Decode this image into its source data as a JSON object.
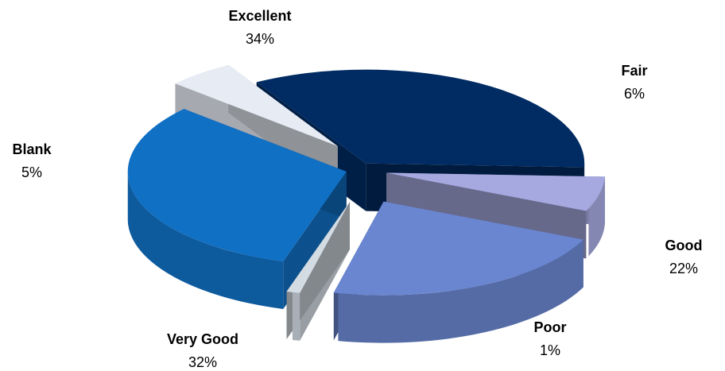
{
  "chart_data": {
    "type": "pie",
    "style": "3d-exploded",
    "slices": [
      {
        "label": "Excellent",
        "value": 34,
        "value_label": "34%",
        "color": "#002b63"
      },
      {
        "label": "Fair",
        "value": 6,
        "value_label": "6%",
        "color": "#a6a9e0"
      },
      {
        "label": "Good",
        "value": 22,
        "value_label": "22%",
        "color": "#6a86d0"
      },
      {
        "label": "Poor",
        "value": 1,
        "value_label": "1%",
        "color": "#d3dbe3"
      },
      {
        "label": "Very Good",
        "value": 32,
        "value_label": "32%",
        "color": "#1070c4"
      },
      {
        "label": "Blank",
        "value": 5,
        "value_label": "5%",
        "color": "#e6ebf4"
      }
    ],
    "legend": "none",
    "data_labels": "outside"
  }
}
